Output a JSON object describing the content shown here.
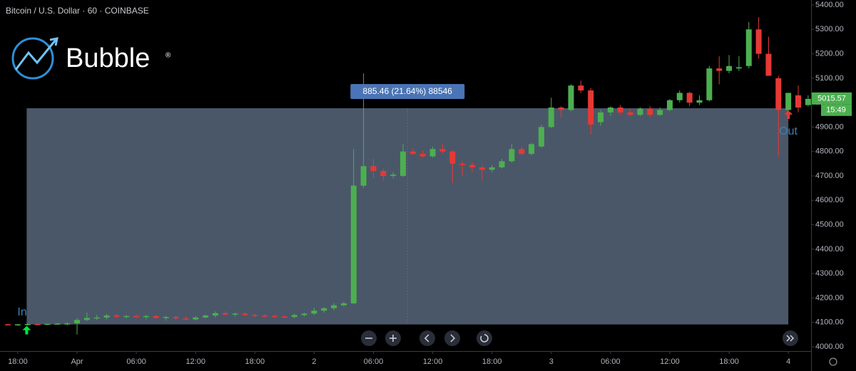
{
  "chart_data": {
    "type": "candlestick",
    "title": "Bitcoin / U.S. Dollar · 60 · COINBASE",
    "logo": "Bubble",
    "logo_mark": "®",
    "x": [
      17,
      18,
      19,
      20,
      21,
      22,
      23,
      24,
      25,
      26,
      27,
      28,
      29,
      30,
      31,
      32,
      33,
      34,
      35,
      36,
      37,
      38,
      39,
      40,
      41,
      42,
      43,
      44,
      45,
      46,
      47,
      48,
      49,
      50,
      51,
      52,
      53,
      54,
      55,
      56,
      57,
      58,
      59,
      60,
      61,
      62,
      63,
      64,
      65,
      66,
      67,
      68,
      69,
      70,
      71,
      72,
      73,
      74,
      75,
      76,
      77,
      78,
      79,
      80,
      81,
      82,
      83,
      84,
      85,
      86,
      87,
      88,
      89,
      90,
      91,
      92,
      93,
      94,
      95,
      96,
      97,
      98
    ],
    "open": [
      4092,
      4090,
      4092,
      4093,
      4092,
      4094,
      4095,
      4096,
      4110,
      4118,
      4120,
      4128,
      4124,
      4126,
      4122,
      4126,
      4118,
      4122,
      4116,
      4112,
      4120,
      4128,
      4138,
      4132,
      4136,
      4130,
      4128,
      4126,
      4124,
      4122,
      4130,
      4136,
      4148,
      4158,
      4170,
      4178,
      4660,
      4740,
      4720,
      4700,
      4700,
      4800,
      4790,
      4780,
      4810,
      4800,
      4750,
      4745,
      4735,
      4725,
      4735,
      4760,
      4810,
      4790,
      4820,
      4900,
      4980,
      4970,
      5070,
      5050,
      4920,
      4960,
      4980,
      4960,
      4950,
      4975,
      4950,
      4970,
      5010,
      5040,
      5000,
      5010,
      5140,
      5130,
      5140,
      5150,
      5300,
      5200,
      5100,
      4970,
      5030,
      4990
    ],
    "high": [
      4095,
      4094,
      4096,
      4096,
      4095,
      4098,
      4100,
      4118,
      4140,
      4130,
      4135,
      4134,
      4130,
      4132,
      4130,
      4130,
      4126,
      4128,
      4124,
      4126,
      4132,
      4145,
      4146,
      4140,
      4142,
      4136,
      4134,
      4132,
      4130,
      4136,
      4140,
      4160,
      4162,
      4178,
      4185,
      4810,
      5120,
      4770,
      4730,
      4715,
      4830,
      4815,
      4805,
      4820,
      4830,
      4805,
      4760,
      4755,
      4745,
      4745,
      4770,
      4830,
      4820,
      4835,
      4910,
      5020,
      4985,
      5075,
      5090,
      5060,
      4970,
      4985,
      4990,
      4975,
      4980,
      4985,
      4980,
      5015,
      5050,
      5045,
      5030,
      5150,
      5190,
      5195,
      5190,
      5330,
      5350,
      5270,
      5110,
      5040,
      5070,
      5030
    ],
    "low": [
      4088,
      4086,
      4088,
      4090,
      4089,
      4090,
      4088,
      4050,
      4105,
      4110,
      4112,
      4118,
      4116,
      4118,
      4112,
      4115,
      4108,
      4110,
      4108,
      4108,
      4116,
      4120,
      4128,
      4124,
      4126,
      4122,
      4122,
      4118,
      4116,
      4118,
      4124,
      4130,
      4140,
      4150,
      4165,
      4175,
      4650,
      4690,
      4680,
      4690,
      4695,
      4785,
      4775,
      4775,
      4790,
      4670,
      4700,
      4715,
      4680,
      4715,
      4730,
      4755,
      4785,
      4785,
      4815,
      4895,
      4940,
      4965,
      5040,
      4870,
      4905,
      4945,
      4950,
      4945,
      4945,
      4940,
      4945,
      4965,
      5000,
      4985,
      4990,
      5005,
      5075,
      5120,
      5130,
      5140,
      5180,
      5110,
      4780,
      4955,
      4960,
      4985
    ],
    "close": [
      4090,
      4092,
      4093,
      4092,
      4094,
      4095,
      4096,
      4110,
      4118,
      4120,
      4128,
      4124,
      4126,
      4122,
      4126,
      4118,
      4122,
      4116,
      4112,
      4120,
      4128,
      4138,
      4132,
      4136,
      4130,
      4128,
      4126,
      4124,
      4122,
      4130,
      4136,
      4148,
      4158,
      4170,
      4178,
      4660,
      4740,
      4720,
      4700,
      4705,
      4800,
      4790,
      4780,
      4810,
      4800,
      4750,
      4745,
      4735,
      4725,
      4735,
      4760,
      4810,
      4790,
      4830,
      4900,
      4980,
      4970,
      5070,
      5050,
      4910,
      4960,
      4980,
      4960,
      4950,
      4975,
      4950,
      4970,
      5010,
      5040,
      5000,
      5010,
      5140,
      5130,
      5150,
      5145,
      5300,
      5200,
      5110,
      4970,
      5040,
      4980,
      5015.57
    ],
    "up_color": "#4caf50",
    "down_color": "#e53935",
    "countdown": "15:49",
    "xlim": [
      16.2,
      98.3
    ],
    "ylim": [
      3982.5,
      5420.4
    ],
    "xticks": [
      {
        "value": 18,
        "label": "18:00"
      },
      {
        "value": 24,
        "label": "Apr"
      },
      {
        "value": 30,
        "label": "06:00"
      },
      {
        "value": 36,
        "label": "12:00"
      },
      {
        "value": 42,
        "label": "18:00"
      },
      {
        "value": 48,
        "label": "2"
      },
      {
        "value": 54,
        "label": "06:00"
      },
      {
        "value": 60,
        "label": "12:00"
      },
      {
        "value": 66,
        "label": "18:00"
      },
      {
        "value": 72,
        "label": "3"
      },
      {
        "value": 78,
        "label": "06:00"
      },
      {
        "value": 84,
        "label": "12:00"
      },
      {
        "value": 90,
        "label": "18:00"
      },
      {
        "value": 96,
        "label": "4"
      }
    ],
    "yticks": [
      {
        "value": 4000,
        "label": "4000.00"
      },
      {
        "value": 4100,
        "label": "4100.00"
      },
      {
        "value": 4200,
        "label": "4200.00"
      },
      {
        "value": 4300,
        "label": "4300.00"
      },
      {
        "value": 4400,
        "label": "4400.00"
      },
      {
        "value": 4500,
        "label": "4500.00"
      },
      {
        "value": 4600,
        "label": "4600.00"
      },
      {
        "value": 4700,
        "label": "4700.00"
      },
      {
        "value": 4800,
        "label": "4800.00"
      },
      {
        "value": 4900,
        "label": "4900.00"
      },
      {
        "value": 5000,
        "label": "5000.00"
      },
      {
        "value": 5100,
        "label": "5100.00"
      },
      {
        "value": 5200,
        "label": "5200.00"
      },
      {
        "value": 5300,
        "label": "5300.00"
      },
      {
        "value": 5400,
        "label": "5400.00"
      }
    ],
    "position": {
      "entry_label": "In",
      "exit_label": "Out",
      "x_start": 18.9,
      "x_end": 96,
      "entry": 4091.5,
      "exit": 4977,
      "summary": "885.46 (21.64%) 88546",
      "color": "#4a5769"
    }
  }
}
